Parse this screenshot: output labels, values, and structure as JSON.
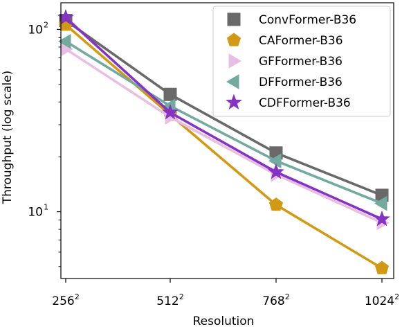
{
  "chart_data": {
    "type": "line",
    "title": "",
    "xlabel": "Resolution",
    "ylabel": "Throughput (log scale)",
    "yscale": "log",
    "ylim": [
      4.3,
      140
    ],
    "categories": [
      "256",
      "512",
      "768",
      "1024"
    ],
    "category_superscript": "2",
    "yticks": [
      {
        "value": 10,
        "base": "10",
        "exp": "1"
      },
      {
        "value": 100,
        "base": "10",
        "exp": "2"
      }
    ],
    "legend_position": "top-right",
    "grid": false,
    "series": [
      {
        "name": "ConvFormer-B36",
        "values": [
          112,
          44,
          21,
          12.3
        ],
        "color": "#696969",
        "marker": "square"
      },
      {
        "name": "CAFormer-B36",
        "values": [
          106,
          34,
          10.9,
          4.9
        ],
        "color": "#d29a14",
        "marker": "pentagon"
      },
      {
        "name": "GFFormer-B36",
        "values": [
          78,
          33,
          16,
          8.7
        ],
        "color": "#e8bfe4",
        "marker": "triangle-right"
      },
      {
        "name": "DFFormer-B36",
        "values": [
          86,
          38,
          19,
          11.1
        ],
        "color": "#73aa9f",
        "marker": "triangle-left"
      },
      {
        "name": "CDFFormer-B36",
        "values": [
          116,
          35,
          16.5,
          9.1
        ],
        "color": "#8533c2",
        "marker": "star"
      }
    ]
  }
}
